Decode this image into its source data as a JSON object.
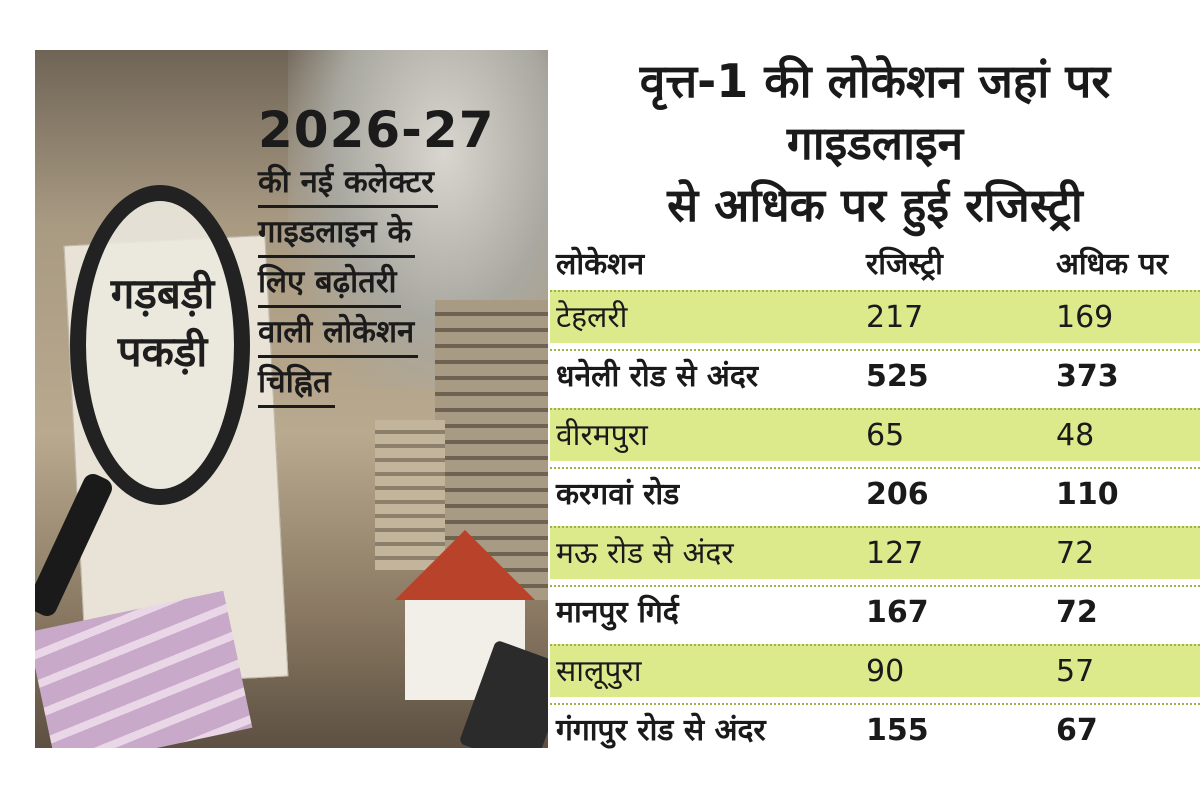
{
  "image_panel": {
    "lens_text": [
      "गड़बड़ी",
      "पकड़ी"
    ],
    "year": "2026-27",
    "headline_lines": [
      "की नई कलेक्टर",
      "गाइडलाइन के",
      "लिए बढ़ोतरी",
      "वाली लोकेशन",
      "चिह्नित"
    ]
  },
  "table": {
    "title_lines": [
      "वृत्त-1 की लोकेशन जहां पर गाइडलाइन",
      "से अधिक पर हुई रजिस्ट्री"
    ],
    "headers": [
      "लोकेशन",
      "रजिस्ट्री",
      "अधिक पर"
    ],
    "row_highlight_color": "#dcea8c",
    "rows": [
      [
        "टेहलरी",
        "217",
        "169"
      ],
      [
        "धनेली रोड से अंदर",
        "525",
        "373"
      ],
      [
        "वीरमपुरा",
        "65",
        "48"
      ],
      [
        "करगवां रोड",
        "206",
        "110"
      ],
      [
        "मऊ रोड से अंदर",
        "127",
        "72"
      ],
      [
        "मानपुर गिर्द",
        "167",
        "72"
      ],
      [
        "सालूपुरा",
        "90",
        "57"
      ],
      [
        "गंगापुर रोड से अंदर",
        "155",
        "67"
      ]
    ]
  }
}
